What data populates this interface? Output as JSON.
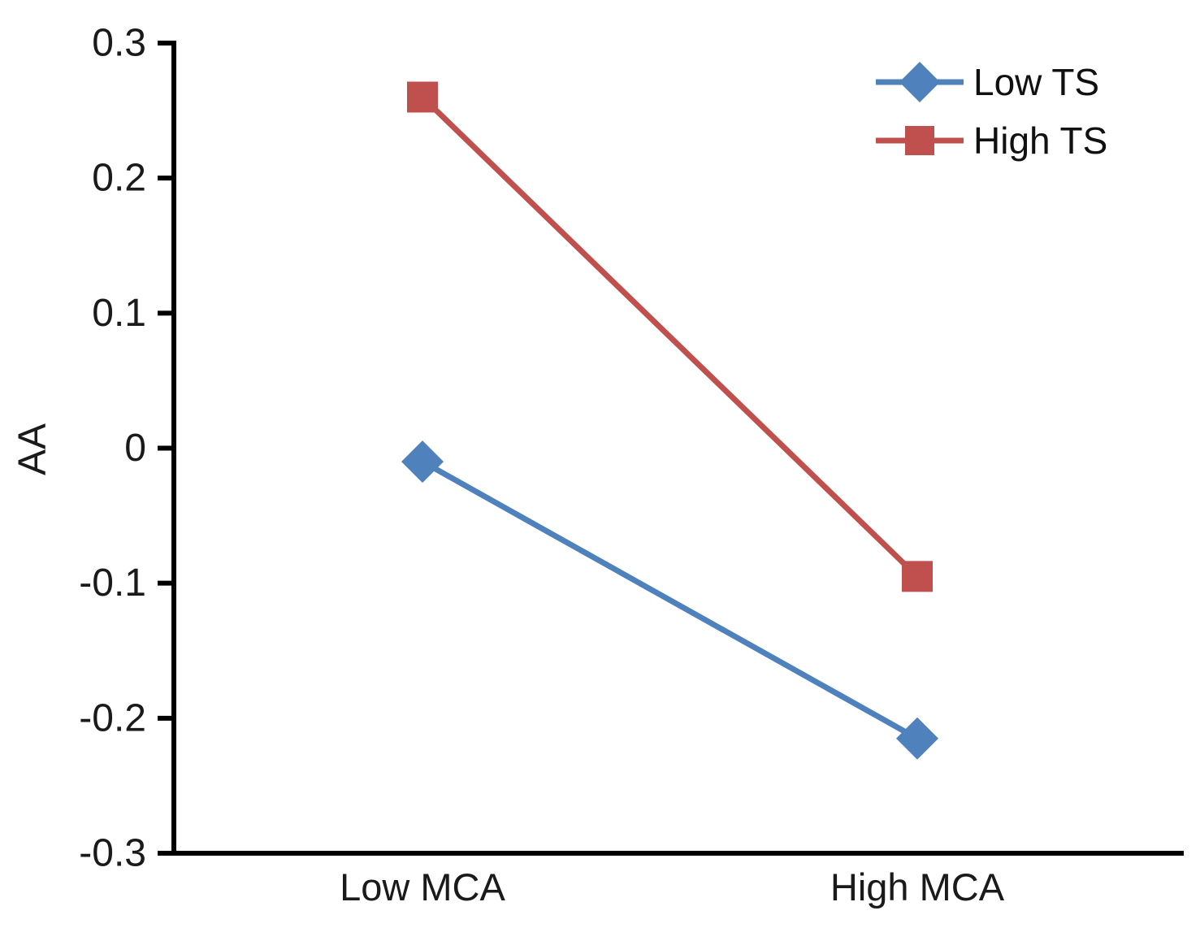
{
  "chart_data": {
    "type": "line",
    "title": "",
    "xlabel": "",
    "ylabel": "AA",
    "categories": [
      "Low MCA",
      "High MCA"
    ],
    "series": [
      {
        "name": "Low TS",
        "marker": "diamond",
        "color": "#4F81BD",
        "values": [
          -0.01,
          -0.215
        ]
      },
      {
        "name": "High TS",
        "marker": "square",
        "color": "#C0504D",
        "values": [
          0.26,
          -0.095
        ]
      }
    ],
    "ylim": [
      -0.3,
      0.3
    ],
    "ytick_values": [
      0.3,
      0.2,
      0.1,
      0,
      -0.1,
      -0.2,
      -0.3
    ],
    "ytick_labels": [
      "0.3",
      "0.2",
      "0.1",
      "0",
      "-0.1",
      "-0.2",
      "-0.3"
    ],
    "grid": false,
    "legend_position": "top-right",
    "axis_color": "#000000",
    "background_color": "#FFFFFF"
  }
}
